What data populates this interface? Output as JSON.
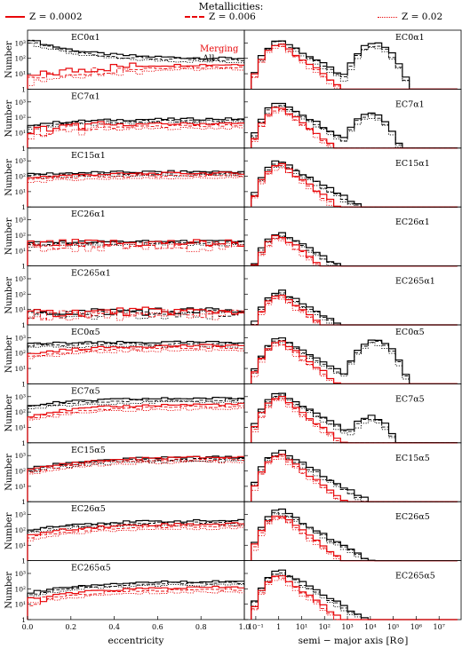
{
  "legend": {
    "title": "Metallicities:",
    "items": [
      "Z = 0.0002",
      "Z = 0.006",
      "Z = 0.02"
    ]
  },
  "colors": {
    "merging": "#e8070a",
    "all": "#000000"
  },
  "inset_labels": {
    "merging": "Merging",
    "all": "All"
  },
  "chart_data": {
    "type": "histogram-grid",
    "rows": [
      "EC0α1",
      "EC7α1",
      "EC15α1",
      "EC26α1",
      "EC265α1",
      "EC0α5",
      "EC7α5",
      "EC15α5",
      "EC26α5",
      "EC265α5"
    ],
    "left_xlabel": "eccentricity",
    "left_xticks": [
      "0.0",
      "0.2",
      "0.4",
      "0.6",
      "0.8",
      "1.0"
    ],
    "left_xlim": [
      0,
      1
    ],
    "right_xlabel": "semi − major axis [R⊙]",
    "right_xticks": [
      "10⁻¹",
      "1",
      "10¹",
      "10²",
      "10³",
      "10⁴",
      "10⁵",
      "10⁶",
      "10⁷"
    ],
    "right_xlim_log10": [
      -1.5,
      8
    ],
    "ylabel": "Number",
    "yticks": [
      "1",
      "10¹",
      "10²",
      "10³"
    ],
    "ylim_log10": [
      0,
      3.6
    ],
    "yscale": "log",
    "series_styles": [
      {
        "population": "All",
        "metallicity": "Z = 0.0002",
        "color": "#000000",
        "dash": "solid"
      },
      {
        "population": "All",
        "metallicity": "Z = 0.006",
        "color": "#000000",
        "dash": "dashed"
      },
      {
        "population": "All",
        "metallicity": "Z = 0.02",
        "color": "#000000",
        "dash": "dotted"
      },
      {
        "population": "Merging",
        "metallicity": "Z = 0.0002",
        "color": "#e8070a",
        "dash": "solid"
      },
      {
        "population": "Merging",
        "metallicity": "Z = 0.006",
        "color": "#e8070a",
        "dash": "dashed"
      },
      {
        "population": "Merging",
        "metallicity": "Z = 0.02",
        "color": "#e8070a",
        "dash": "dotted"
      }
    ],
    "ecc_profiles": {
      "all": [
        [
          3.3,
          2.0
        ],
        [
          1.5,
          1.9
        ],
        [
          2.1,
          2.3
        ],
        [
          1.5,
          1.6
        ],
        [
          0.8,
          0.9
        ],
        [
          2.6,
          2.7
        ],
        [
          2.4,
          2.9
        ],
        [
          2.1,
          2.9
        ],
        [
          2.0,
          2.6
        ],
        [
          1.7,
          2.5
        ]
      ],
      "merging": [
        [
          0.7,
          1.6
        ],
        [
          1.1,
          1.6
        ],
        [
          1.9,
          2.2
        ],
        [
          1.4,
          1.5
        ],
        [
          0.7,
          0.9
        ],
        [
          1.9,
          2.5
        ],
        [
          1.7,
          2.5
        ],
        [
          2.0,
          2.9
        ],
        [
          1.6,
          2.4
        ],
        [
          1.2,
          2.1
        ]
      ]
    },
    "sma_profiles": {
      "peak_log10_a": 0.1,
      "all_peak": [
        3.2,
        3.0,
        3.0,
        2.2,
        2.2,
        3.0,
        3.2,
        3.3,
        3.3,
        3.2
      ],
      "merging_peak": [
        3.0,
        2.7,
        2.8,
        2.0,
        2.0,
        2.8,
        3.0,
        3.1,
        3.0,
        2.9
      ],
      "wide_peak_height": [
        3.0,
        2.3,
        0,
        0,
        0,
        2.9,
        1.7,
        0,
        0,
        0
      ],
      "wide_peak_center": [
        4.2,
        4.0,
        4.0,
        4.0,
        4.0,
        4.2,
        4.0,
        4.0,
        4.0,
        4.0
      ]
    }
  }
}
